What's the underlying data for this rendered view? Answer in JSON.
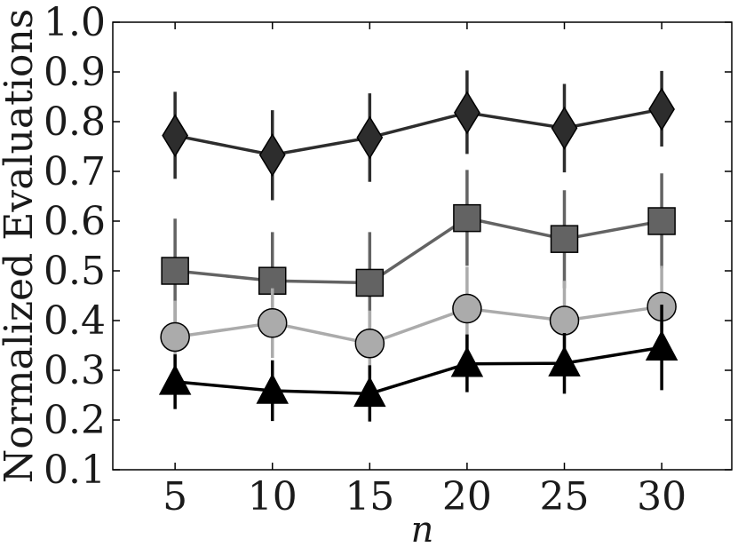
{
  "chart_data": {
    "type": "line",
    "title": "",
    "xlabel": "n",
    "ylabel": "Normalized Evaluations",
    "x": [
      5,
      10,
      15,
      20,
      25,
      30
    ],
    "xticks": [
      "5",
      "10",
      "15",
      "20",
      "25",
      "30"
    ],
    "xlim": [
      1.8,
      33.6
    ],
    "ylim": [
      0.1,
      1.0
    ],
    "yticks": [
      "0.1",
      "0.2",
      "0.3",
      "0.4",
      "0.5",
      "0.6",
      "0.7",
      "0.8",
      "0.9",
      "1.0"
    ],
    "grid": false,
    "legend": "none",
    "series": [
      {
        "marker": "diamond",
        "color": "#2d2d2d",
        "values": [
          0.772,
          0.733,
          0.768,
          0.818,
          0.787,
          0.825
        ],
        "err_low": [
          0.685,
          0.642,
          0.679,
          0.735,
          0.698,
          0.75
        ],
        "err_high": [
          0.86,
          0.823,
          0.857,
          0.903,
          0.876,
          0.902
        ]
      },
      {
        "marker": "square",
        "color": "#636363",
        "values": [
          0.5,
          0.48,
          0.476,
          0.606,
          0.564,
          0.6
        ],
        "err_low": [
          0.395,
          0.38,
          0.375,
          0.51,
          0.465,
          0.505
        ],
        "err_high": [
          0.605,
          0.578,
          0.578,
          0.703,
          0.662,
          0.696
        ]
      },
      {
        "marker": "circle",
        "color": "#ababab",
        "values": [
          0.367,
          0.395,
          0.354,
          0.424,
          0.4,
          0.428
        ],
        "err_low": [
          0.295,
          0.325,
          0.29,
          0.34,
          0.32,
          0.345
        ],
        "err_high": [
          0.44,
          0.465,
          0.42,
          0.508,
          0.48,
          0.51
        ]
      },
      {
        "marker": "triangle",
        "color": "#000000",
        "values": [
          0.277,
          0.259,
          0.253,
          0.313,
          0.314,
          0.346
        ],
        "err_low": [
          0.222,
          0.198,
          0.197,
          0.256,
          0.253,
          0.26
        ],
        "err_high": [
          0.332,
          0.32,
          0.31,
          0.372,
          0.375,
          0.432
        ]
      }
    ]
  }
}
